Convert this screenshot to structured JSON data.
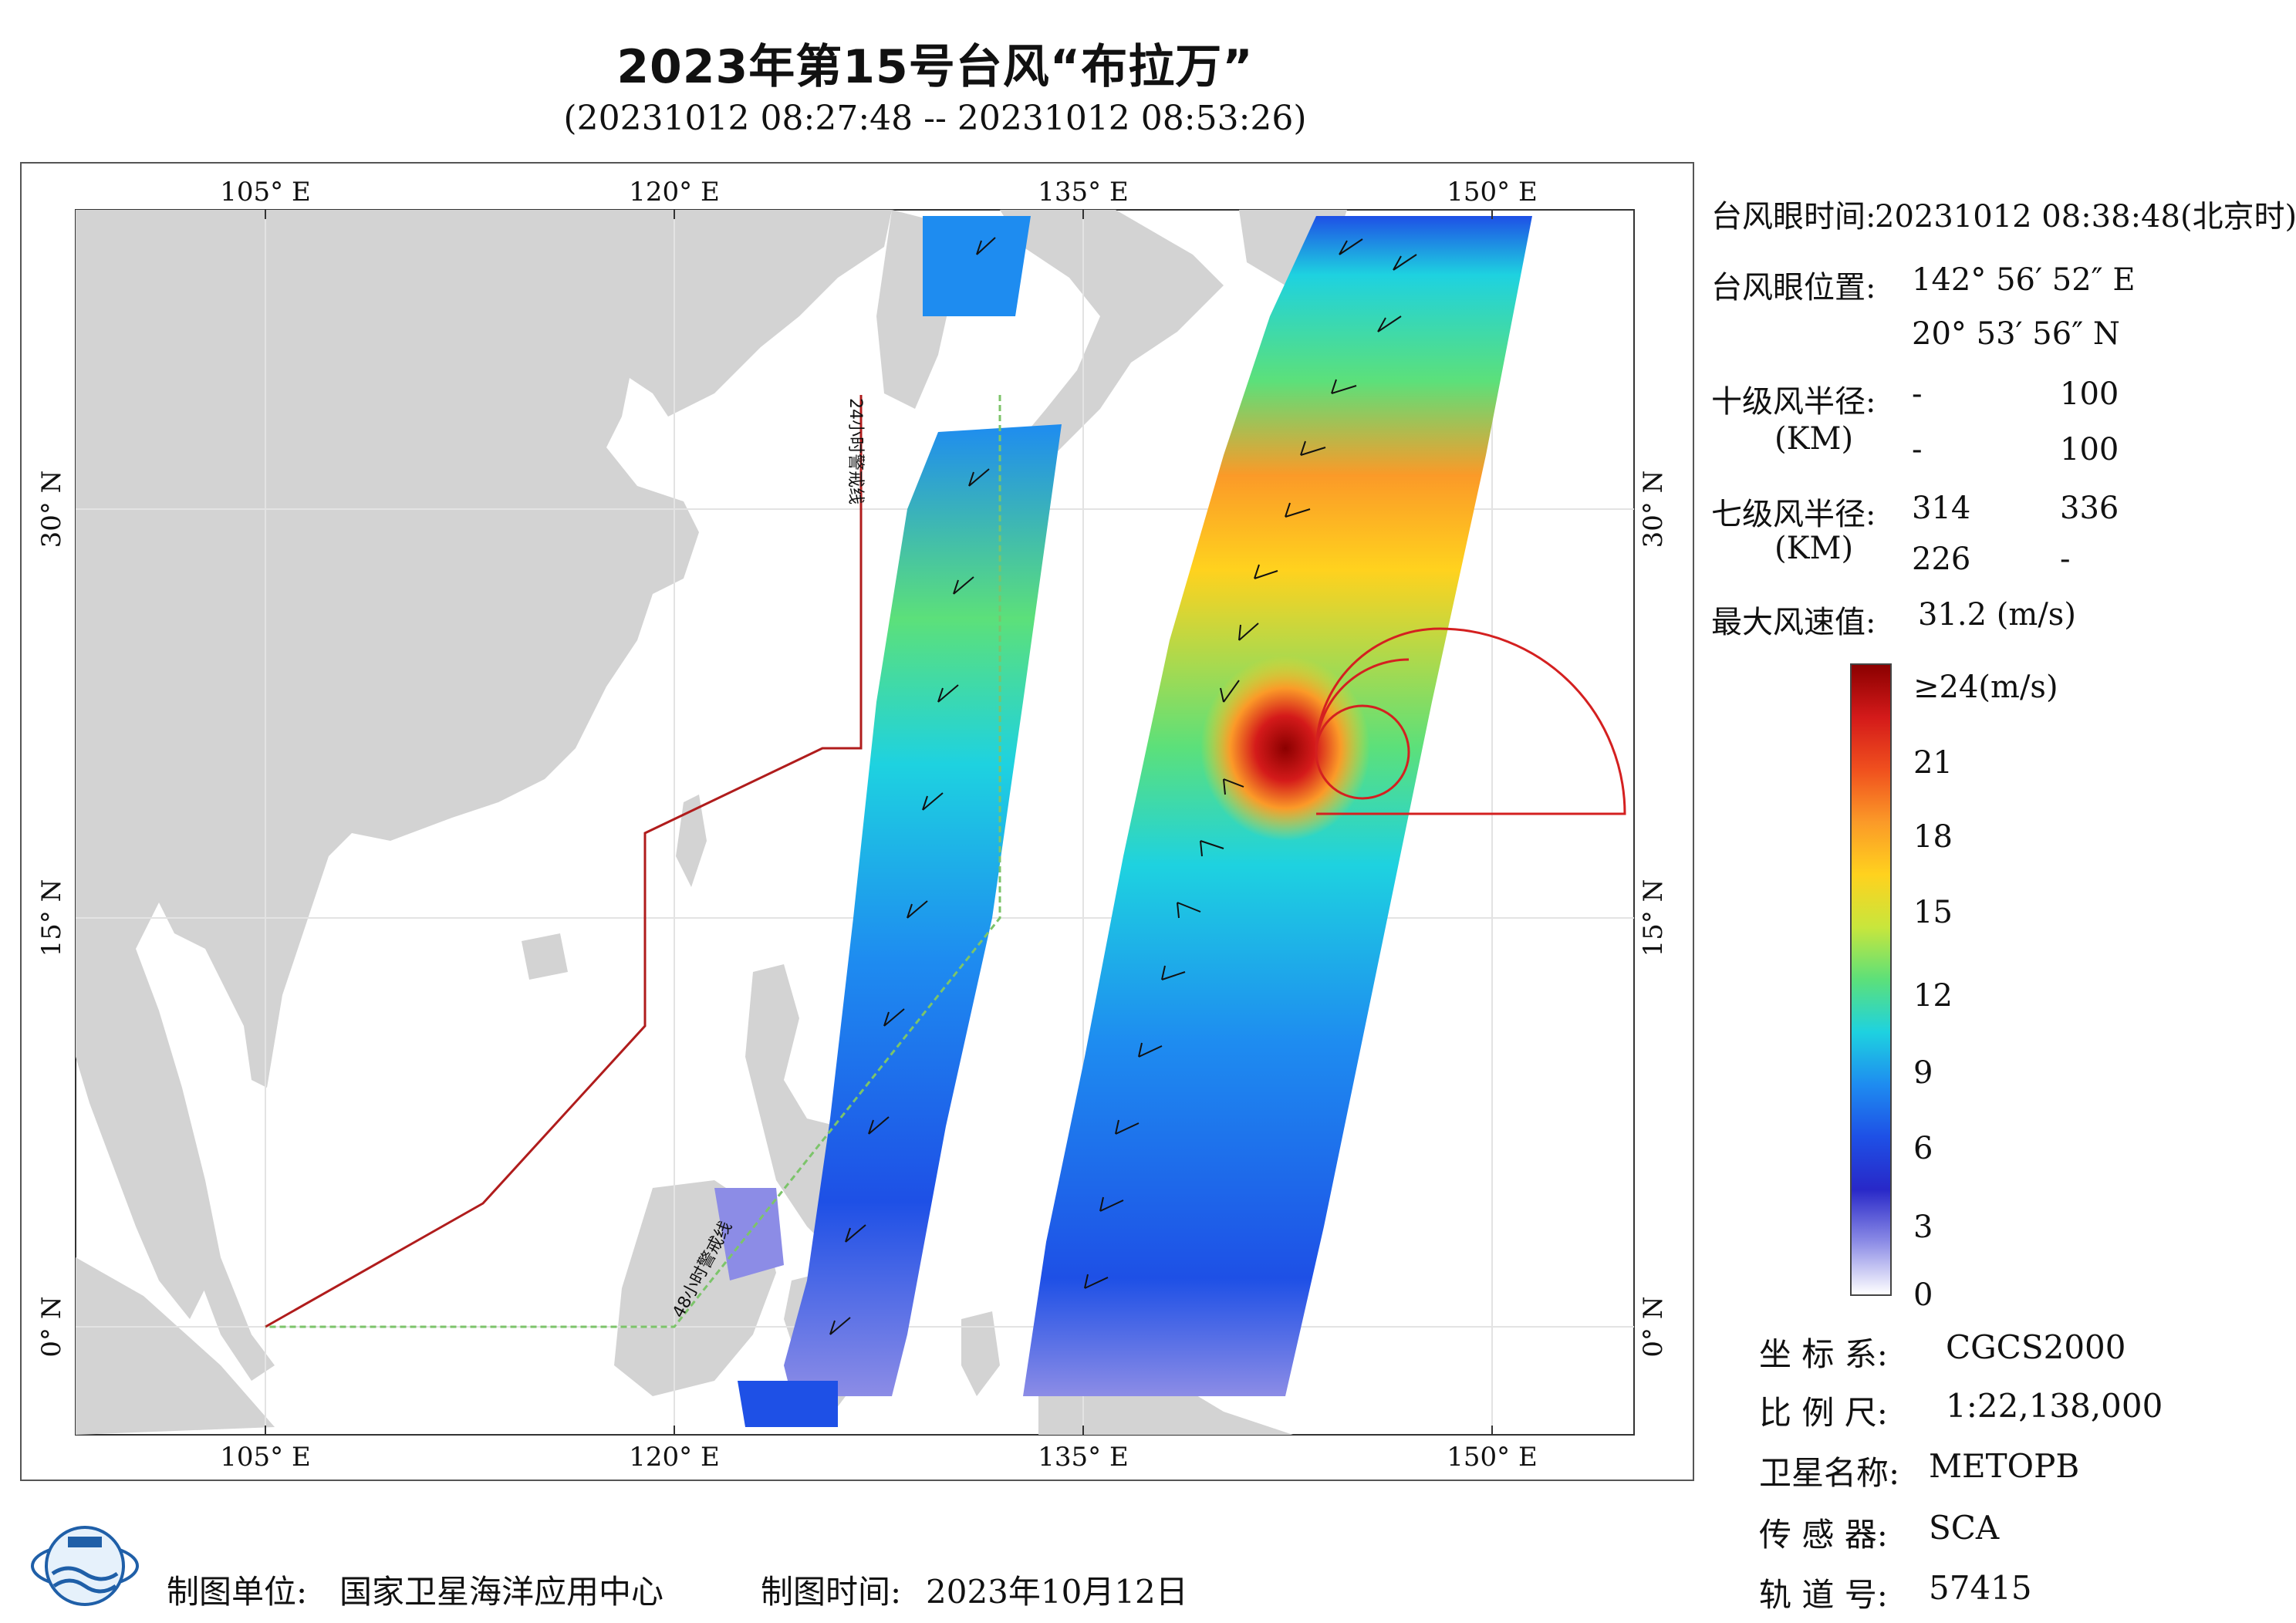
{
  "header": {
    "title": "2023年第15号台风“布拉万”",
    "subtitle": "(20231012 08:27:48 -- 20231012 08:53:26)"
  },
  "map": {
    "lon_ticks_top": [
      "105° E",
      "120° E",
      "135° E",
      "150° E"
    ],
    "lon_ticks_bottom": [
      "105° E",
      "120° E",
      "135° E",
      "150° E"
    ],
    "lat_ticks_left": [
      "30° N",
      "15° N",
      "0° N"
    ],
    "lat_ticks_right": [
      "30° N",
      "15° N",
      "0° N"
    ],
    "warning_line_24h": "24小时警戒线",
    "warning_line_48h": "48小时警戒线",
    "colors": {
      "land": "#d3d3d3",
      "sea": "#ffffff",
      "warning_24h": "#b01c1c",
      "warning_48h": "#7cc46a",
      "wind_radius": "#d42020"
    }
  },
  "info": {
    "eye_time_label": "台风眼时间:",
    "eye_time_value": "20231012 08:38:48(北京时)",
    "eye_pos_label": "台风眼位置:",
    "eye_lon": "142° 56′ 52″ E",
    "eye_lat": "20° 53′ 56″ N",
    "r10_label": "十级风半径:",
    "r10_unit": "(KM)",
    "r10_values": [
      "-",
      "100",
      "-",
      "100"
    ],
    "r7_label": "七级风半径:",
    "r7_unit": "(KM)",
    "r7_values": [
      "314",
      "336",
      "226",
      "-"
    ],
    "max_label": "最大风速值:",
    "max_value": "31.2 (m/s)"
  },
  "colorbar": {
    "labels": [
      "≥24(m/s)",
      "21",
      "18",
      "15",
      "12",
      "9",
      "6",
      "3",
      "0"
    ],
    "stops": [
      "#8b0000",
      "#d41a1a",
      "#f0501e",
      "#fb9a28",
      "#ffd21e",
      "#c8e63c",
      "#5ce07a",
      "#1ed2e0",
      "#1e8cf0",
      "#1e50e6",
      "#2828c8",
      "#8c8ce6",
      "#ffffff"
    ]
  },
  "meta": {
    "crs_label": "坐 标 系:",
    "crs_value": "CGCS2000",
    "scale_label": "比 例 尺:",
    "scale_value": "1:22,138,000",
    "sat_label": "卫星名称:",
    "sat_value": "METOPB",
    "sensor_label": "传 感 器:",
    "sensor_value": "SCA",
    "orbit_label": "轨 道 号:",
    "orbit_value": "57415"
  },
  "footer": {
    "unit_label": "制图单位:",
    "unit_value": "国家卫星海洋应用中心",
    "date_label": "制图时间:",
    "date_value": "2023年10月12日"
  }
}
